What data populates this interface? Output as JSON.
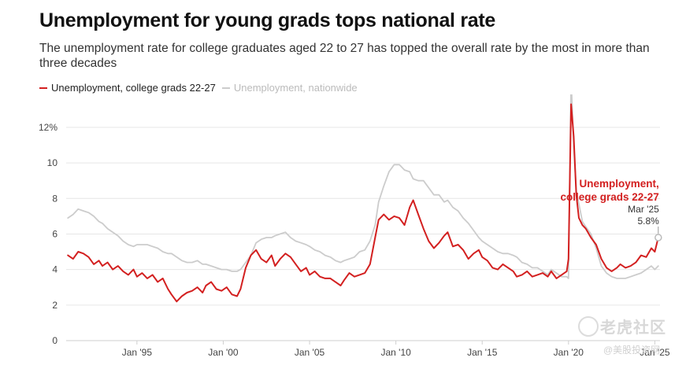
{
  "header": {
    "title": "Unemployment for young grads tops national rate",
    "subtitle": "The unemployment rate for college graduates aged 22 to 27 has topped the overall rate by the most in more than three decades"
  },
  "legend": {
    "grads_label": "Unemployment, college grads 22-27",
    "nation_label": "Unemployment, nationwide"
  },
  "annotation": {
    "line1": "Unemployment,",
    "line2": "college grads 22-27",
    "date": "Mar '25",
    "value": "5.8%"
  },
  "watermark": {
    "text": "老虎社区",
    "sub": "@美股投资网"
  },
  "colors": {
    "grads": "#d32020",
    "nation": "#cccccc",
    "grid": "#e6e6e6",
    "axis_text": "#444444"
  },
  "chart_data": {
    "type": "line",
    "title": "Unemployment for young grads tops national rate",
    "subtitle": "The unemployment rate for college graduates aged 22 to 27 has topped the overall rate by the most in more than three decades",
    "xlabel": "",
    "ylabel": "",
    "xlim": [
      1990.9,
      2025.3
    ],
    "ylim": [
      0,
      13.5
    ],
    "yticks": [
      {
        "value": 0,
        "label": "0"
      },
      {
        "value": 2,
        "label": "2"
      },
      {
        "value": 4,
        "label": "4"
      },
      {
        "value": 6,
        "label": "6"
      },
      {
        "value": 8,
        "label": "8"
      },
      {
        "value": 10,
        "label": "10"
      },
      {
        "value": 12,
        "label": "12%"
      }
    ],
    "xticks": [
      {
        "value": 1995,
        "label": "Jan '95"
      },
      {
        "value": 2000,
        "label": "Jan '00"
      },
      {
        "value": 2005,
        "label": "Jan '05"
      },
      {
        "value": 2010,
        "label": "Jan '10"
      },
      {
        "value": 2015,
        "label": "Jan '15"
      },
      {
        "value": 2020,
        "label": "Jan '20"
      },
      {
        "value": 2025,
        "label": "Jan '25"
      }
    ],
    "grid": "horizontal",
    "legend_position": "top-left",
    "series": [
      {
        "name": "Unemployment, college grads 22-27",
        "color": "#d32020",
        "x": [
          1991.0,
          1991.3,
          1991.6,
          1991.9,
          1992.2,
          1992.5,
          1992.8,
          1993.0,
          1993.3,
          1993.6,
          1993.9,
          1994.2,
          1994.5,
          1994.8,
          1995.0,
          1995.3,
          1995.6,
          1995.9,
          1996.2,
          1996.5,
          1996.8,
          1997.0,
          1997.3,
          1997.6,
          1997.9,
          1998.2,
          1998.5,
          1998.8,
          1999.0,
          1999.3,
          1999.6,
          1999.9,
          2000.2,
          2000.5,
          2000.8,
          2001.0,
          2001.3,
          2001.6,
          2001.9,
          2002.2,
          2002.5,
          2002.8,
          2003.0,
          2003.3,
          2003.6,
          2003.9,
          2004.2,
          2004.5,
          2004.8,
          2005.0,
          2005.3,
          2005.6,
          2005.9,
          2006.2,
          2006.5,
          2006.8,
          2007.0,
          2007.3,
          2007.6,
          2007.9,
          2008.2,
          2008.5,
          2008.8,
          2009.0,
          2009.3,
          2009.6,
          2009.9,
          2010.2,
          2010.5,
          2010.8,
          2011.0,
          2011.3,
          2011.6,
          2011.9,
          2012.2,
          2012.5,
          2012.8,
          2013.0,
          2013.3,
          2013.6,
          2013.9,
          2014.2,
          2014.5,
          2014.8,
          2015.0,
          2015.3,
          2015.6,
          2015.9,
          2016.2,
          2016.5,
          2016.8,
          2017.0,
          2017.3,
          2017.6,
          2017.9,
          2018.2,
          2018.5,
          2018.8,
          2019.0,
          2019.3,
          2019.6,
          2019.9,
          2020.0,
          2020.15,
          2020.3,
          2020.45,
          2020.6,
          2020.8,
          2021.0,
          2021.3,
          2021.6,
          2021.9,
          2022.2,
          2022.5,
          2022.8,
          2023.0,
          2023.3,
          2023.6,
          2023.9,
          2024.2,
          2024.5,
          2024.8,
          2025.0,
          2025.2
        ],
        "y": [
          4.8,
          4.6,
          5.0,
          4.9,
          4.7,
          4.3,
          4.5,
          4.2,
          4.4,
          4.0,
          4.2,
          3.9,
          3.7,
          4.0,
          3.6,
          3.8,
          3.5,
          3.7,
          3.3,
          3.5,
          2.9,
          2.6,
          2.2,
          2.5,
          2.7,
          2.8,
          3.0,
          2.7,
          3.1,
          3.3,
          2.9,
          2.8,
          3.0,
          2.6,
          2.5,
          2.9,
          4.1,
          4.8,
          5.1,
          4.6,
          4.4,
          4.8,
          4.2,
          4.6,
          4.9,
          4.7,
          4.3,
          3.9,
          4.1,
          3.7,
          3.9,
          3.6,
          3.5,
          3.5,
          3.3,
          3.1,
          3.4,
          3.8,
          3.6,
          3.7,
          3.8,
          4.3,
          5.8,
          6.8,
          7.1,
          6.8,
          7.0,
          6.9,
          6.5,
          7.5,
          7.9,
          7.1,
          6.3,
          5.6,
          5.2,
          5.5,
          5.9,
          6.1,
          5.3,
          5.4,
          5.1,
          4.6,
          4.9,
          5.1,
          4.7,
          4.5,
          4.1,
          4.0,
          4.3,
          4.1,
          3.9,
          3.6,
          3.7,
          3.9,
          3.6,
          3.7,
          3.8,
          3.6,
          3.9,
          3.5,
          3.7,
          3.9,
          4.6,
          13.3,
          11.5,
          8.2,
          6.9,
          6.5,
          6.3,
          5.8,
          5.4,
          4.6,
          4.1,
          3.9,
          4.1,
          4.3,
          4.1,
          4.2,
          4.4,
          4.8,
          4.7,
          5.2,
          5.0,
          5.8
        ]
      },
      {
        "name": "Unemployment, nationwide",
        "color": "#cccccc",
        "x": [
          1991.0,
          1991.3,
          1991.6,
          1991.9,
          1992.2,
          1992.5,
          1992.8,
          1993.0,
          1993.3,
          1993.6,
          1993.9,
          1994.2,
          1994.5,
          1994.8,
          1995.0,
          1995.3,
          1995.6,
          1995.9,
          1996.2,
          1996.5,
          1996.8,
          1997.0,
          1997.3,
          1997.6,
          1997.9,
          1998.2,
          1998.5,
          1998.8,
          1999.0,
          1999.3,
          1999.6,
          1999.9,
          2000.2,
          2000.5,
          2000.8,
          2001.0,
          2001.3,
          2001.6,
          2001.9,
          2002.2,
          2002.5,
          2002.8,
          2003.0,
          2003.3,
          2003.6,
          2003.9,
          2004.2,
          2004.5,
          2004.8,
          2005.0,
          2005.3,
          2005.6,
          2005.9,
          2006.2,
          2006.5,
          2006.8,
          2007.0,
          2007.3,
          2007.6,
          2007.9,
          2008.2,
          2008.5,
          2008.8,
          2009.0,
          2009.3,
          2009.6,
          2009.9,
          2010.2,
          2010.5,
          2010.8,
          2011.0,
          2011.3,
          2011.6,
          2011.9,
          2012.2,
          2012.5,
          2012.8,
          2013.0,
          2013.3,
          2013.6,
          2013.9,
          2014.2,
          2014.5,
          2014.8,
          2015.0,
          2015.3,
          2015.6,
          2015.9,
          2016.2,
          2016.5,
          2016.8,
          2017.0,
          2017.3,
          2017.6,
          2017.9,
          2018.2,
          2018.5,
          2018.8,
          2019.0,
          2019.3,
          2019.6,
          2019.9,
          2020.0,
          2020.15,
          2020.3,
          2020.45,
          2020.6,
          2020.8,
          2021.0,
          2021.3,
          2021.6,
          2021.9,
          2022.2,
          2022.5,
          2022.8,
          2023.0,
          2023.3,
          2023.6,
          2023.9,
          2024.2,
          2024.5,
          2024.8,
          2025.0,
          2025.2
        ],
        "y": [
          6.9,
          7.1,
          7.4,
          7.3,
          7.2,
          7.0,
          6.7,
          6.6,
          6.3,
          6.1,
          5.9,
          5.6,
          5.4,
          5.3,
          5.4,
          5.4,
          5.4,
          5.3,
          5.2,
          5.0,
          4.9,
          4.9,
          4.7,
          4.5,
          4.4,
          4.4,
          4.5,
          4.3,
          4.3,
          4.2,
          4.1,
          4.0,
          4.0,
          3.9,
          3.9,
          4.0,
          4.4,
          4.8,
          5.5,
          5.7,
          5.8,
          5.8,
          5.9,
          6.0,
          6.1,
          5.8,
          5.6,
          5.5,
          5.4,
          5.3,
          5.1,
          5.0,
          4.8,
          4.7,
          4.5,
          4.4,
          4.5,
          4.6,
          4.7,
          5.0,
          5.1,
          5.6,
          6.5,
          7.8,
          8.7,
          9.5,
          9.9,
          9.9,
          9.6,
          9.5,
          9.1,
          9.0,
          9.0,
          8.6,
          8.2,
          8.2,
          7.8,
          7.9,
          7.5,
          7.3,
          6.9,
          6.6,
          6.2,
          5.8,
          5.6,
          5.4,
          5.2,
          5.0,
          4.9,
          4.9,
          4.8,
          4.7,
          4.4,
          4.3,
          4.1,
          4.1,
          3.9,
          3.7,
          4.0,
          3.8,
          3.6,
          3.6,
          3.5,
          14.7,
          11.0,
          8.4,
          7.7,
          6.7,
          6.4,
          6.0,
          5.2,
          4.2,
          3.8,
          3.6,
          3.5,
          3.5,
          3.5,
          3.6,
          3.7,
          3.8,
          4.0,
          4.2,
          4.0,
          4.2
        ]
      }
    ],
    "annotations": [
      {
        "x": 2025.2,
        "y": 5.8,
        "text": "Unemployment, college grads 22-27",
        "date": "Mar '25",
        "value": "5.8%"
      }
    ]
  }
}
